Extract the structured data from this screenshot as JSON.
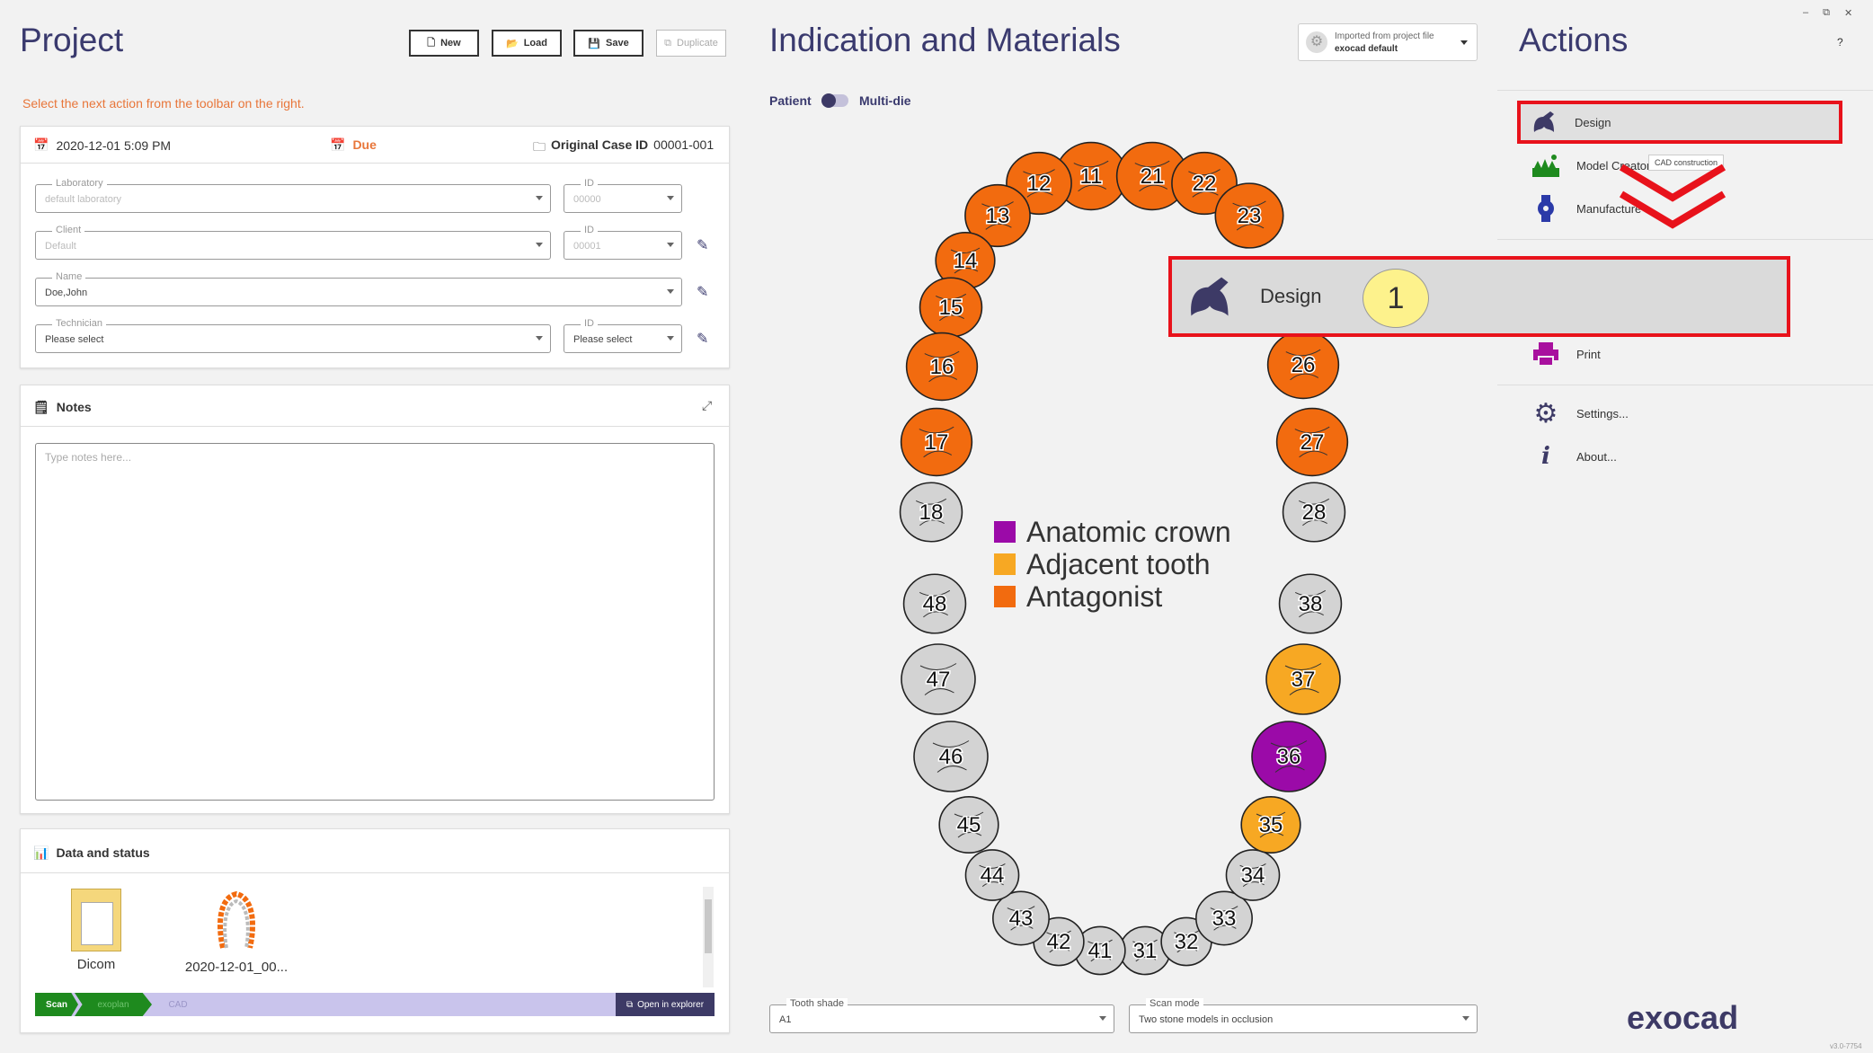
{
  "project": {
    "title": "Project",
    "buttons": {
      "new": "New",
      "load": "Load",
      "save": "Save",
      "duplicate": "Duplicate"
    },
    "hint": "Select the next action from the toolbar on the right.",
    "date": "2020-12-01 5:09 PM",
    "due": "Due",
    "case_label": "Original Case ID",
    "case_id": "00001-001",
    "fields": {
      "laboratory": {
        "label": "Laboratory",
        "value": "default laboratory"
      },
      "lab_id": {
        "label": "ID",
        "value": "00000"
      },
      "client": {
        "label": "Client",
        "value": "Default"
      },
      "client_id": {
        "label": "ID",
        "value": "00001"
      },
      "name": {
        "label": "Name",
        "value": "Doe,John"
      },
      "technician": {
        "label": "Technician",
        "value": "Please select"
      },
      "tech_id": {
        "label": "ID",
        "value": "Please select"
      }
    },
    "notes_title": "Notes",
    "notes_placeholder": "Type notes here...",
    "data_title": "Data and status",
    "files": [
      {
        "name": "Dicom"
      },
      {
        "name": "2020-12-01_00..."
      }
    ],
    "steps": {
      "scan": "Scan",
      "exoplan": "exoplan",
      "cad": "CAD"
    },
    "open_explorer": "Open in explorer"
  },
  "indication": {
    "title": "Indication and Materials",
    "imported_line1": "Imported from project file",
    "imported_line2": "exocad default",
    "toggle_left": "Patient",
    "toggle_right": "Multi-die",
    "legend": [
      {
        "label": "Anatomic crown",
        "color": "#9b0aa8"
      },
      {
        "label": "Adjacent tooth",
        "color": "#f7a823"
      },
      {
        "label": "Antagonist",
        "color": "#f26b0f"
      }
    ],
    "teeth": [
      {
        "n": "11",
        "c": "#f26b0f"
      },
      {
        "n": "12",
        "c": "#f26b0f"
      },
      {
        "n": "13",
        "c": "#f26b0f"
      },
      {
        "n": "14",
        "c": "#f26b0f"
      },
      {
        "n": "15",
        "c": "#f26b0f"
      },
      {
        "n": "16",
        "c": "#f26b0f"
      },
      {
        "n": "17",
        "c": "#f26b0f"
      },
      {
        "n": "18",
        "c": "#d3d3d3"
      },
      {
        "n": "21",
        "c": "#f26b0f"
      },
      {
        "n": "22",
        "c": "#f26b0f"
      },
      {
        "n": "23",
        "c": "#f26b0f"
      },
      {
        "n": "26",
        "c": "#f26b0f"
      },
      {
        "n": "27",
        "c": "#f26b0f"
      },
      {
        "n": "28",
        "c": "#d3d3d3"
      },
      {
        "n": "31",
        "c": "#d3d3d3"
      },
      {
        "n": "32",
        "c": "#d3d3d3"
      },
      {
        "n": "33",
        "c": "#d3d3d3"
      },
      {
        "n": "34",
        "c": "#d3d3d3"
      },
      {
        "n": "35",
        "c": "#f7a823"
      },
      {
        "n": "36",
        "c": "#9b0aa8"
      },
      {
        "n": "37",
        "c": "#f7a823"
      },
      {
        "n": "38",
        "c": "#d3d3d3"
      },
      {
        "n": "41",
        "c": "#d3d3d3"
      },
      {
        "n": "42",
        "c": "#d3d3d3"
      },
      {
        "n": "43",
        "c": "#d3d3d3"
      },
      {
        "n": "44",
        "c": "#d3d3d3"
      },
      {
        "n": "45",
        "c": "#d3d3d3"
      },
      {
        "n": "46",
        "c": "#d3d3d3"
      },
      {
        "n": "47",
        "c": "#d3d3d3"
      },
      {
        "n": "48",
        "c": "#d3d3d3"
      }
    ],
    "tooth_shade_label": "Tooth shade",
    "tooth_shade_value": "A1",
    "scan_mode_label": "Scan mode",
    "scan_mode_value": "Two stone models in occlusion"
  },
  "actions": {
    "title": "Actions",
    "help": "?",
    "items": {
      "design": "Design",
      "model_creator": "Model Creator",
      "manufacture": "Manufacture",
      "print": "Print",
      "settings": "Settings...",
      "about": "About..."
    },
    "tooltip": "CAD construction",
    "callout_label": "Design",
    "callout_number": "1",
    "brand": "exocad",
    "version": "v3.0-7754"
  }
}
